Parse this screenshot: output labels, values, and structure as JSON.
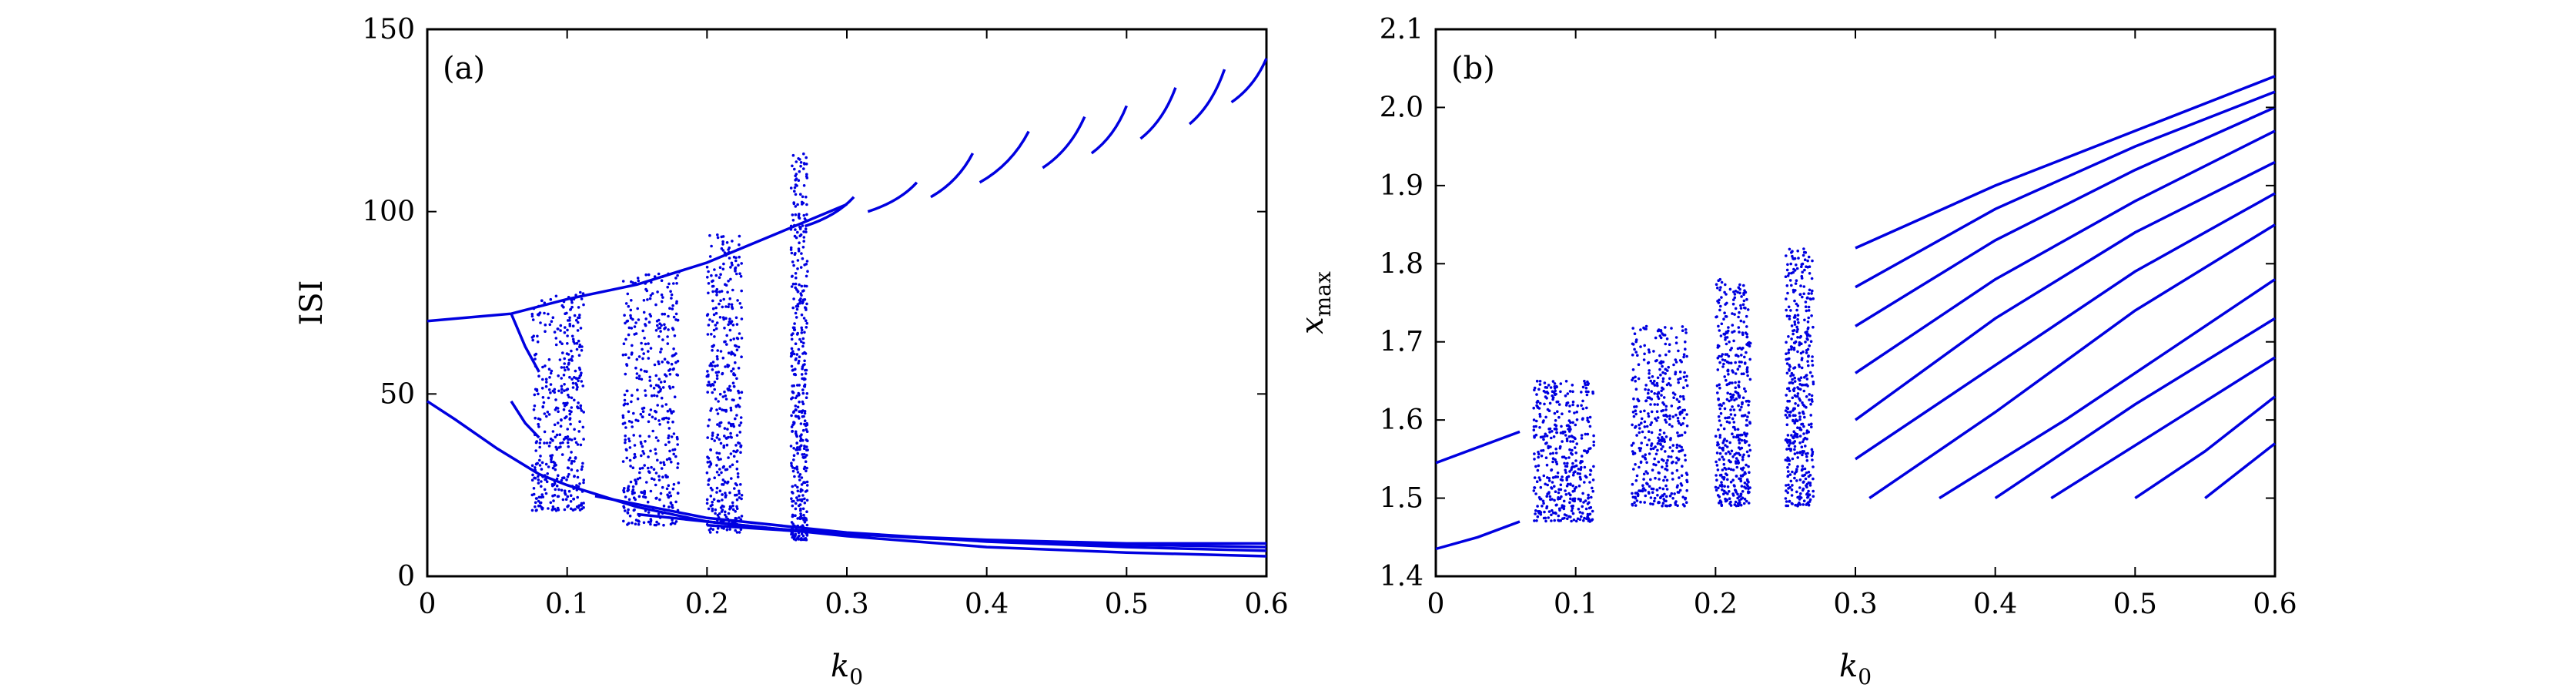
{
  "chart_data": [
    {
      "type": "scatter",
      "panel_label": "(a)",
      "xlabel": "k",
      "xlabel_sub": "0",
      "ylabel": "ISI",
      "ylabel_sub": "",
      "xlim": [
        0,
        0.6
      ],
      "ylim": [
        0,
        150
      ],
      "xticks": [
        0,
        0.1,
        0.2,
        0.3,
        0.4,
        0.5,
        0.6
      ],
      "xtick_labels": [
        "0",
        "0.1",
        "0.2",
        "0.3",
        "0.4",
        "0.5",
        "0.6"
      ],
      "yticks": [
        0,
        50,
        100,
        150
      ],
      "ytick_labels": [
        "0",
        "50",
        "100",
        "150"
      ],
      "color": "#0000e0",
      "series": [
        {
          "name": "upper-main",
          "points": [
            [
              0,
              70
            ],
            [
              0.06,
              72
            ],
            [
              0.1,
              76
            ],
            [
              0.15,
              80
            ],
            [
              0.2,
              86
            ],
            [
              0.25,
              94
            ],
            [
              0.3,
              102
            ]
          ]
        },
        {
          "name": "lower-main",
          "points": [
            [
              0,
              48
            ],
            [
              0.02,
              43
            ],
            [
              0.05,
              35
            ],
            [
              0.08,
              28
            ],
            [
              0.1,
              25
            ],
            [
              0.15,
              19
            ],
            [
              0.2,
              15
            ],
            [
              0.3,
              11
            ],
            [
              0.4,
              8
            ],
            [
              0.5,
              6.5
            ],
            [
              0.6,
              5.5
            ]
          ]
        },
        {
          "name": "branch-1",
          "points": [
            [
              0.06,
              72
            ],
            [
              0.07,
              63
            ],
            [
              0.08,
              56
            ]
          ]
        },
        {
          "name": "branch-2",
          "points": [
            [
              0.06,
              48
            ],
            [
              0.07,
              42
            ],
            [
              0.08,
              38
            ]
          ]
        },
        {
          "name": "branch-3",
          "points": [
            [
              0.12,
              22
            ],
            [
              0.2,
              16
            ],
            [
              0.3,
              12
            ],
            [
              0.4,
              9.5
            ],
            [
              0.5,
              8
            ],
            [
              0.6,
              7
            ]
          ]
        },
        {
          "name": "branch-4",
          "points": [
            [
              0.15,
              17
            ],
            [
              0.25,
              13
            ],
            [
              0.35,
              10.5
            ],
            [
              0.45,
              9
            ],
            [
              0.6,
              8
            ]
          ]
        },
        {
          "name": "branch-5",
          "points": [
            [
              0.2,
              14
            ],
            [
              0.3,
              11.5
            ],
            [
              0.4,
              10
            ],
            [
              0.5,
              9
            ],
            [
              0.6,
              9
            ]
          ]
        }
      ],
      "arcs": [
        {
          "k": [
            0.27,
            0.305
          ],
          "isi": [
            96,
            104
          ]
        },
        {
          "k": [
            0.315,
            0.35
          ],
          "isi": [
            100,
            108
          ]
        },
        {
          "k": [
            0.36,
            0.39
          ],
          "isi": [
            104,
            116
          ]
        },
        {
          "k": [
            0.395,
            0.43
          ],
          "isi": [
            108,
            122
          ]
        },
        {
          "k": [
            0.44,
            0.47
          ],
          "isi": [
            112,
            126
          ]
        },
        {
          "k": [
            0.475,
            0.5
          ],
          "isi": [
            116,
            129
          ]
        },
        {
          "k": [
            0.51,
            0.535
          ],
          "isi": [
            120,
            134
          ]
        },
        {
          "k": [
            0.545,
            0.57
          ],
          "isi": [
            124,
            139
          ]
        },
        {
          "k": [
            0.575,
            0.6
          ],
          "isi": [
            130,
            142
          ]
        }
      ],
      "chaotic_bands": [
        {
          "k": [
            0.075,
            0.112
          ],
          "isi": [
            18,
            78
          ]
        },
        {
          "k": [
            0.14,
            0.18
          ],
          "isi": [
            14,
            84
          ]
        },
        {
          "k": [
            0.2,
            0.225
          ],
          "isi": [
            12,
            94
          ]
        },
        {
          "k": [
            0.26,
            0.272
          ],
          "isi": [
            10,
            116
          ]
        }
      ]
    },
    {
      "type": "scatter",
      "panel_label": "(b)",
      "xlabel": "k",
      "xlabel_sub": "0",
      "ylabel": "x",
      "ylabel_sub": "max",
      "xlim": [
        0,
        0.6
      ],
      "ylim": [
        1.4,
        2.1
      ],
      "xticks": [
        0,
        0.1,
        0.2,
        0.3,
        0.4,
        0.5,
        0.6
      ],
      "xtick_labels": [
        "0",
        "0.1",
        "0.2",
        "0.3",
        "0.4",
        "0.5",
        "0.6"
      ],
      "yticks": [
        1.4,
        1.5,
        1.6,
        1.7,
        1.8,
        1.9,
        2.0,
        2.1
      ],
      "ytick_labels": [
        "1.4",
        "1.5",
        "1.6",
        "1.7",
        "1.8",
        "1.9",
        "2.0",
        "2.1"
      ],
      "color": "#0000e0",
      "series": [
        {
          "name": "upper",
          "points": [
            [
              0,
              1.545
            ],
            [
              0.03,
              1.565
            ],
            [
              0.06,
              1.585
            ]
          ]
        },
        {
          "name": "lower",
          "points": [
            [
              0,
              1.435
            ],
            [
              0.03,
              1.45
            ],
            [
              0.06,
              1.47
            ]
          ]
        },
        {
          "name": "branch-1",
          "points": [
            [
              0.3,
              1.82
            ],
            [
              0.4,
              1.9
            ],
            [
              0.5,
              1.97
            ],
            [
              0.6,
              2.04
            ]
          ]
        },
        {
          "name": "branch-2",
          "points": [
            [
              0.3,
              1.77
            ],
            [
              0.4,
              1.87
            ],
            [
              0.5,
              1.95
            ],
            [
              0.6,
              2.02
            ]
          ]
        },
        {
          "name": "branch-3",
          "points": [
            [
              0.3,
              1.72
            ],
            [
              0.4,
              1.83
            ],
            [
              0.5,
              1.92
            ],
            [
              0.6,
              2.0
            ]
          ]
        },
        {
          "name": "branch-4",
          "points": [
            [
              0.3,
              1.66
            ],
            [
              0.4,
              1.78
            ],
            [
              0.5,
              1.88
            ],
            [
              0.6,
              1.97
            ]
          ]
        },
        {
          "name": "branch-5",
          "points": [
            [
              0.3,
              1.6
            ],
            [
              0.4,
              1.73
            ],
            [
              0.5,
              1.84
            ],
            [
              0.6,
              1.93
            ]
          ]
        },
        {
          "name": "branch-6",
          "points": [
            [
              0.3,
              1.55
            ],
            [
              0.4,
              1.67
            ],
            [
              0.5,
              1.79
            ],
            [
              0.6,
              1.89
            ]
          ]
        },
        {
          "name": "branch-7",
          "points": [
            [
              0.31,
              1.5
            ],
            [
              0.4,
              1.61
            ],
            [
              0.5,
              1.74
            ],
            [
              0.6,
              1.85
            ]
          ]
        },
        {
          "name": "branch-8",
          "points": [
            [
              0.36,
              1.5
            ],
            [
              0.45,
              1.6
            ],
            [
              0.55,
              1.72
            ],
            [
              0.6,
              1.78
            ]
          ]
        },
        {
          "name": "branch-9",
          "points": [
            [
              0.4,
              1.5
            ],
            [
              0.5,
              1.62
            ],
            [
              0.6,
              1.73
            ]
          ]
        },
        {
          "name": "branch-10",
          "points": [
            [
              0.44,
              1.5
            ],
            [
              0.52,
              1.59
            ],
            [
              0.6,
              1.68
            ]
          ]
        },
        {
          "name": "branch-11",
          "points": [
            [
              0.5,
              1.5
            ],
            [
              0.55,
              1.56
            ],
            [
              0.6,
              1.63
            ]
          ]
        },
        {
          "name": "branch-12",
          "points": [
            [
              0.55,
              1.5
            ],
            [
              0.6,
              1.57
            ]
          ]
        }
      ],
      "chaotic_bands": [
        {
          "k": [
            0.07,
            0.113
          ],
          "x": [
            1.47,
            1.65
          ]
        },
        {
          "k": [
            0.14,
            0.18
          ],
          "x": [
            1.49,
            1.72
          ]
        },
        {
          "k": [
            0.2,
            0.225
          ],
          "x": [
            1.49,
            1.78
          ]
        },
        {
          "k": [
            0.25,
            0.27
          ],
          "x": [
            1.49,
            1.82
          ]
        }
      ]
    }
  ]
}
